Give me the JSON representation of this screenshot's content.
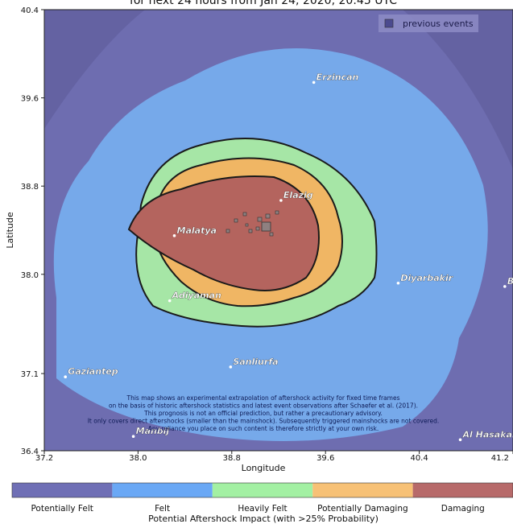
{
  "title_line": "for next  24 hours from Jan 24, 2020, 20:45 UTC",
  "axes": {
    "xlabel": "Longitude",
    "ylabel": "Latitude",
    "x_ticks": [
      "37.2",
      "38.0",
      "38.8",
      "39.6",
      "40.4",
      "41.2"
    ],
    "y_ticks": [
      "40.4",
      "39.6",
      "38.8",
      "38.0",
      "37.1",
      "36.4"
    ]
  },
  "legend": {
    "label": "previous events"
  },
  "cities": [
    {
      "name": "Erzincan",
      "lon": 39.5,
      "lat": 39.74
    },
    {
      "name": "Elazig",
      "lon": 39.22,
      "lat": 38.67
    },
    {
      "name": "Malatya",
      "lon": 38.31,
      "lat": 38.35
    },
    {
      "name": "Diyarbakir",
      "lon": 40.22,
      "lat": 37.92
    },
    {
      "name": "Batman",
      "lon": 41.13,
      "lat": 37.89
    },
    {
      "name": "Adiyaman",
      "lon": 38.27,
      "lat": 37.76
    },
    {
      "name": "Sanliurfa",
      "lon": 38.79,
      "lat": 37.16
    },
    {
      "name": "Gaziantep",
      "lon": 37.38,
      "lat": 37.07
    },
    {
      "name": "Manbij",
      "lon": 37.96,
      "lat": 36.53
    },
    {
      "name": "Al Hasakah",
      "lon": 40.75,
      "lat": 36.5
    }
  ],
  "disclaimer": [
    "This map shows an experimental extrapolation of aftershock activity for fixed time frames",
    "on the basis of historic aftershock statistics and latest event observations after Schaefer et al. (2017).",
    "This prognosis is not an official prediction, but rather a precautionary advisory.",
    "It only covers direct aftershocks (smaller than the mainshock). Subsequently triggered mainshocks are not covered.",
    "Any reliance you place on such content is therefore strictly at your own risk."
  ],
  "colorbar": {
    "title": "Potential Aftershock Impact (with >25% Probability)",
    "classes": [
      {
        "label": "Potentially Felt",
        "color": "#6f6fb5"
      },
      {
        "label": "Felt",
        "color": "#6aa8f5"
      },
      {
        "label": "Heavily Felt",
        "color": "#a3f0a3"
      },
      {
        "label": "Potentially Damaging",
        "color": "#f7c176"
      },
      {
        "label": "Damaging",
        "color": "#b76a6a"
      }
    ]
  },
  "colors": {
    "potentially_felt": "#6e6db0",
    "felt": "#76a9ea",
    "heavily_felt": "#a6e6a6",
    "potentially_damaging": "#f0b664",
    "damaging": "#b4645e"
  }
}
